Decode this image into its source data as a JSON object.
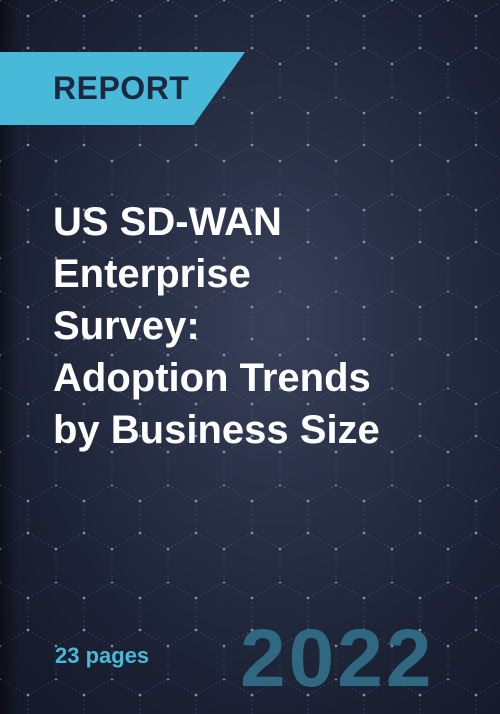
{
  "badge": {
    "label": "REPORT"
  },
  "title": {
    "lines": [
      "US SD-WAN",
      "Enterprise",
      "Survey:",
      "Adoption Trends",
      "by Business Size"
    ]
  },
  "meta": {
    "pages": "23 pages",
    "year": "2022"
  },
  "colors": {
    "background": "#283046",
    "accent": "#49b9d9",
    "badge_text": "#1c2740",
    "title": "#ffffff",
    "year": "#2f6880"
  }
}
